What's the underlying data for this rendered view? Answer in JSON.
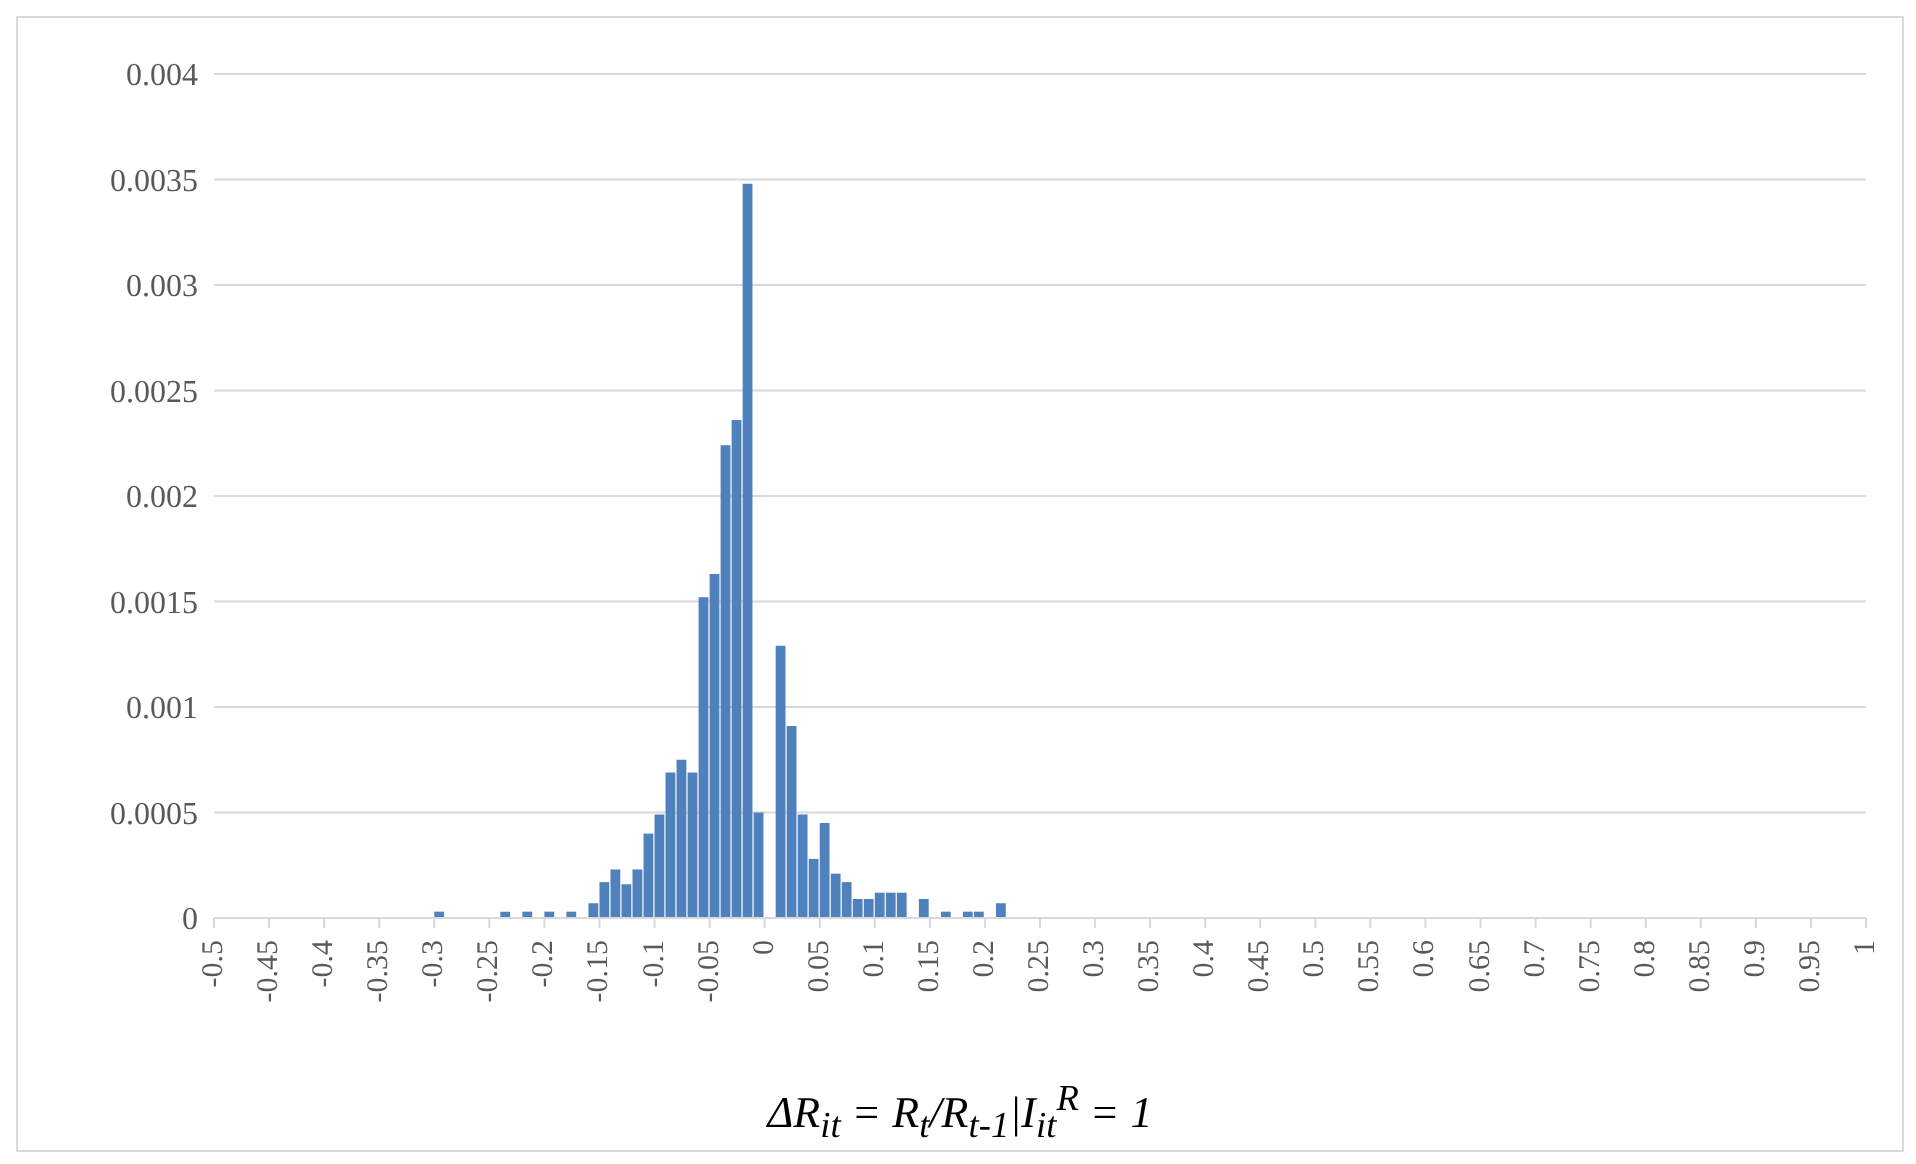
{
  "chart_data": {
    "type": "histogram",
    "xlabel": "ΔR$_{it}$ = R$_{t}$/R$_{t-1}$|I$_{it}$$^{R}$ = 1",
    "color": "#4f81bd",
    "bins": [
      -0.3,
      -0.29,
      -0.28,
      -0.27,
      -0.26,
      -0.25,
      -0.24,
      -0.23,
      -0.22,
      -0.21,
      -0.2,
      -0.19,
      -0.18,
      -0.17,
      -0.16,
      -0.15,
      -0.14,
      -0.13,
      -0.12,
      -0.11,
      -0.1,
      -0.09,
      -0.08,
      -0.07,
      -0.06,
      -0.05,
      -0.04,
      -0.03,
      -0.02,
      -0.01,
      0,
      0.01,
      0.02,
      0.03,
      0.04,
      0.05,
      0.06,
      0.07,
      0.08,
      0.09,
      0.1,
      0.11,
      0.12,
      0.13,
      0.14,
      0.15,
      0.16,
      0.17,
      0.18,
      0.19,
      0.2,
      0.21,
      0.22
    ],
    "values": [
      3e-05,
      0,
      0,
      0,
      0,
      0,
      3e-05,
      0,
      3e-05,
      0,
      3e-05,
      0,
      3e-05,
      0,
      7e-05,
      0.00017,
      0.00023,
      0.00016,
      0.00023,
      0.0004,
      0.00049,
      0.00069,
      0.00075,
      0.00069,
      0.00152,
      0.00163,
      0.00224,
      0.00236,
      0.00348,
      0.0005,
      0,
      0.00129,
      0.00091,
      0.00049,
      0.00028,
      0.00045,
      0.00021,
      0.00017,
      9e-05,
      9e-05,
      0.00012,
      0.00012,
      0.00012,
      0,
      9e-05,
      0,
      3e-05,
      0,
      3e-05,
      3e-05,
      0,
      7e-05
    ],
    "xlim": [
      -0.5,
      1
    ],
    "xticks": [
      -0.5,
      -0.45,
      -0.4,
      -0.35,
      -0.3,
      -0.25,
      -0.2,
      -0.15,
      -0.1,
      -0.05,
      0,
      0.05,
      0.1,
      0.15,
      0.2,
      0.25,
      0.3,
      0.35,
      0.4,
      0.45,
      0.5,
      0.55,
      0.6,
      0.65,
      0.7,
      0.75,
      0.8,
      0.85,
      0.9,
      0.95,
      1
    ],
    "ylim": [
      0,
      0.004
    ],
    "yticks": [
      0,
      0.0005,
      0.001,
      0.0015,
      0.002,
      0.0025,
      0.003,
      0.0035,
      0.004
    ],
    "grid": "y",
    "legend": false
  }
}
